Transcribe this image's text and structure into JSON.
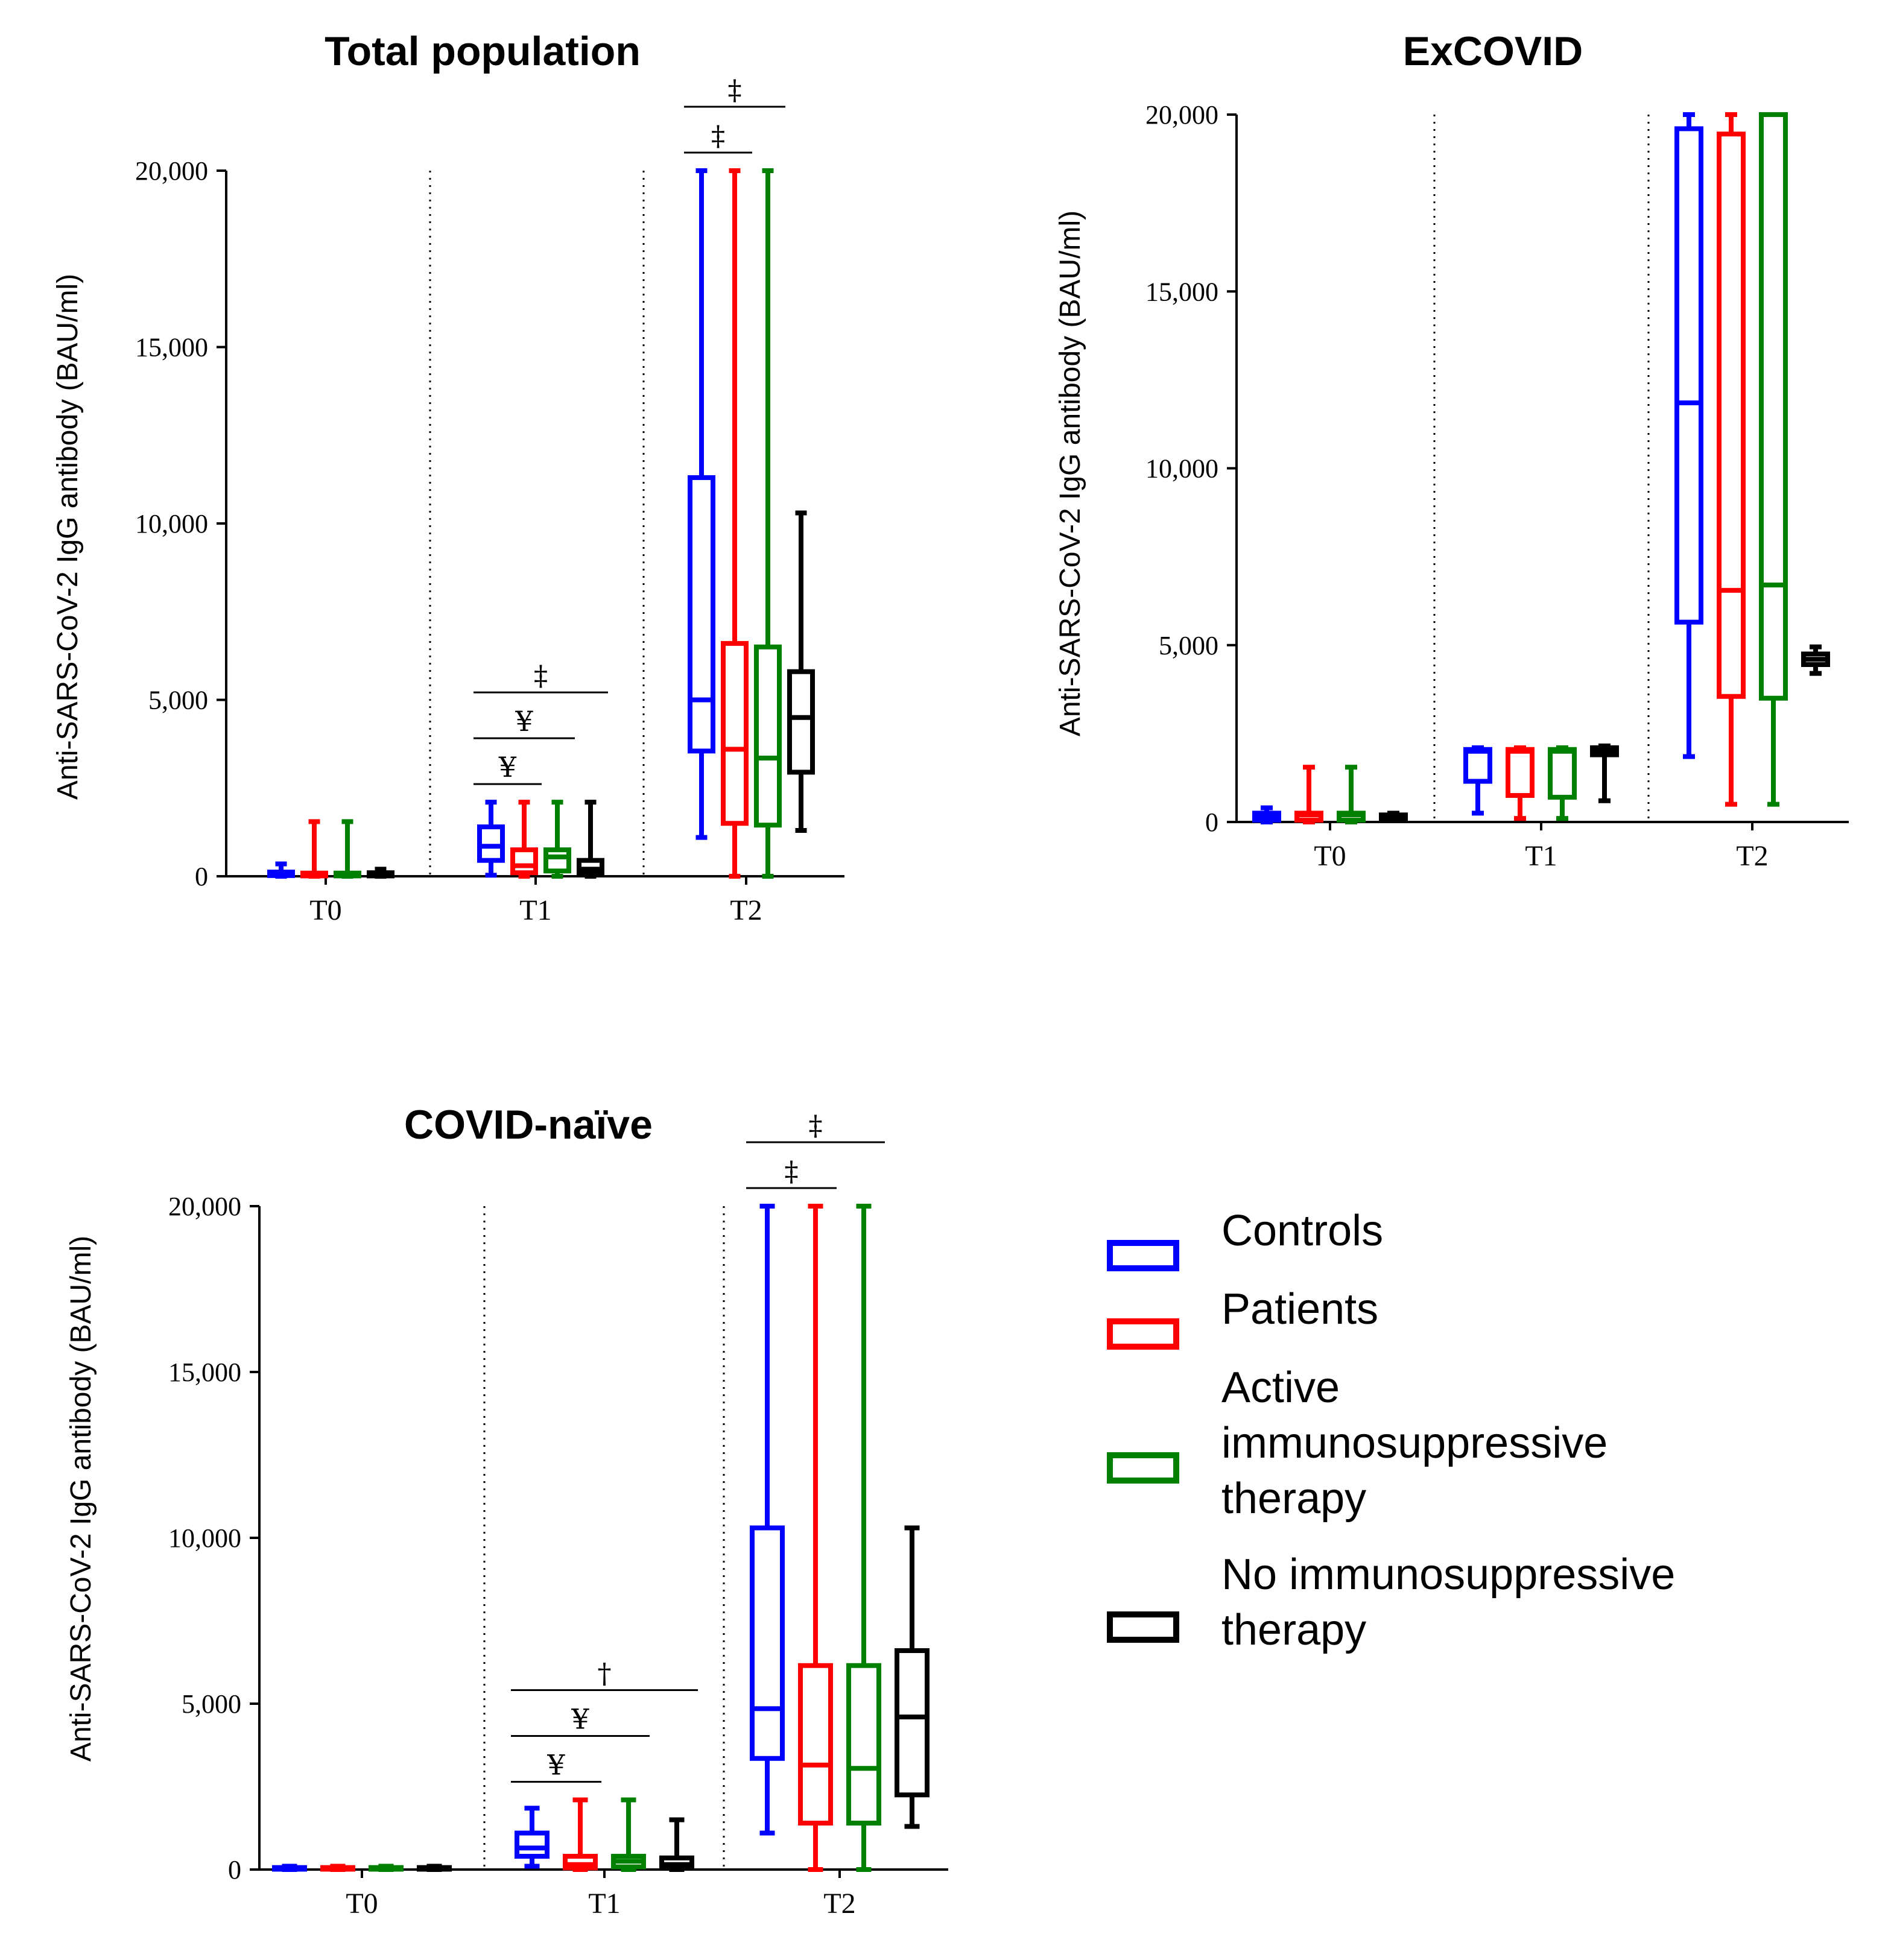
{
  "legend": {
    "items": [
      {
        "lines": [
          "Controls"
        ],
        "color": "#0000ff"
      },
      {
        "lines": [
          "Patients"
        ],
        "color": "#ff0000"
      },
      {
        "lines": [
          "Active",
          "immunosuppressive",
          "therapy"
        ],
        "color": "#008000"
      },
      {
        "lines": [
          "No immunosuppressive",
          "therapy"
        ],
        "color": "#000000"
      }
    ]
  },
  "chart_data": [
    {
      "type": "boxplot",
      "title": "Total population",
      "ylabel": "Anti-SARS-CoV-2 IgG antibody (BAU/ml)",
      "ylim": [
        0,
        20000
      ],
      "yticks": [
        0,
        5000,
        10000,
        15000,
        20000
      ],
      "ytick_labels": [
        "0",
        "5,000",
        "10,000",
        "15,000",
        "20,000"
      ],
      "categories": [
        "T0",
        "T1",
        "T2"
      ],
      "series": [
        {
          "name": "Controls",
          "color": "#0000ff",
          "boxes": [
            {
              "min": 0,
              "q1": 20,
              "median": 60,
              "q3": 120,
              "max": 350
            },
            {
              "min": 30,
              "q1": 450,
              "median": 850,
              "q3": 1400,
              "max": 2100
            },
            {
              "min": 1100,
              "q1": 3550,
              "median": 5000,
              "q3": 11300,
              "max": 20000
            }
          ]
        },
        {
          "name": "Patients",
          "color": "#ff0000",
          "boxes": [
            {
              "min": 0,
              "q1": 10,
              "median": 40,
              "q3": 90,
              "max": 1550
            },
            {
              "min": 0,
              "q1": 100,
              "median": 300,
              "q3": 750,
              "max": 2100
            },
            {
              "min": 0,
              "q1": 1500,
              "median": 3600,
              "q3": 6600,
              "max": 20000
            }
          ]
        },
        {
          "name": "Active immunosuppressive therapy",
          "color": "#008000",
          "boxes": [
            {
              "min": 0,
              "q1": 10,
              "median": 40,
              "q3": 90,
              "max": 1550
            },
            {
              "min": 0,
              "q1": 150,
              "median": 550,
              "q3": 750,
              "max": 2100
            },
            {
              "min": 0,
              "q1": 1450,
              "median": 3350,
              "q3": 6500,
              "max": 20000
            }
          ]
        },
        {
          "name": "No immunosuppressive therapy",
          "color": "#000000",
          "boxes": [
            {
              "min": 0,
              "q1": 10,
              "median": 50,
              "q3": 100,
              "max": 200
            },
            {
              "min": 0,
              "q1": 80,
              "median": 200,
              "q3": 450,
              "max": 2100
            },
            {
              "min": 1300,
              "q1": 2950,
              "median": 4500,
              "q3": 5800,
              "max": 10300
            }
          ]
        }
      ],
      "annotations": [
        {
          "symbol": "‡",
          "group": "T1",
          "from": 0,
          "to": 3,
          "level": 3
        },
        {
          "symbol": "¥",
          "group": "T1",
          "from": 0,
          "to": 2,
          "level": 2
        },
        {
          "symbol": "¥",
          "group": "T1",
          "from": 0,
          "to": 1,
          "level": 1
        },
        {
          "symbol": "‡",
          "group": "T2",
          "from": 0,
          "to": 2,
          "level": 2
        },
        {
          "symbol": "‡",
          "group": "T2",
          "from": 0,
          "to": 1,
          "level": 1
        }
      ]
    },
    {
      "type": "boxplot",
      "title": "ExCOVID",
      "ylabel": "Anti-SARS-CoV-2 IgG antibody (BAU/ml)",
      "ylim": [
        0,
        20000
      ],
      "yticks": [
        0,
        5000,
        10000,
        15000,
        20000
      ],
      "ytick_labels": [
        "0",
        "5,000",
        "10,000",
        "15,000",
        "20,000"
      ],
      "categories": [
        "T0",
        "T1",
        "T2"
      ],
      "series": [
        {
          "name": "Controls",
          "color": "#0000ff",
          "boxes": [
            {
              "min": 0,
              "q1": 50,
              "median": 150,
              "q3": 250,
              "max": 400
            },
            {
              "min": 250,
              "q1": 1150,
              "median": 2000,
              "q3": 2050,
              "max": 2100
            },
            {
              "min": 1850,
              "q1": 5650,
              "median": 11850,
              "q3": 19600,
              "max": 20000
            }
          ]
        },
        {
          "name": "Patients",
          "color": "#ff0000",
          "boxes": [
            {
              "min": 0,
              "q1": 50,
              "median": 200,
              "q3": 250,
              "max": 1550
            },
            {
              "min": 100,
              "q1": 750,
              "median": 2000,
              "q3": 2050,
              "max": 2100
            },
            {
              "min": 500,
              "q1": 3550,
              "median": 6550,
              "q3": 19450,
              "max": 20000
            }
          ]
        },
        {
          "name": "Active immunosuppressive therapy",
          "color": "#008000",
          "boxes": [
            {
              "min": 0,
              "q1": 50,
              "median": 200,
              "q3": 250,
              "max": 1550
            },
            {
              "min": 100,
              "q1": 700,
              "median": 2000,
              "q3": 2050,
              "max": 2100
            },
            {
              "min": 500,
              "q1": 3500,
              "median": 6700,
              "q3": 20000,
              "max": 20000
            }
          ]
        },
        {
          "name": "No immunosuppressive therapy",
          "color": "#000000",
          "boxes": [
            {
              "min": 50,
              "q1": 80,
              "median": 150,
              "q3": 200,
              "max": 250
            },
            {
              "min": 600,
              "q1": 1900,
              "median": 2000,
              "q3": 2100,
              "max": 2150
            },
            {
              "min": 4200,
              "q1": 4450,
              "median": 4600,
              "q3": 4750,
              "max": 4950
            }
          ]
        }
      ],
      "annotations": []
    },
    {
      "type": "boxplot",
      "title": "COVID-naïve",
      "ylabel": "Anti-SARS-CoV-2 IgG antibody (BAU/ml)",
      "ylim": [
        0,
        20000
      ],
      "yticks": [
        0,
        5000,
        10000,
        15000,
        20000
      ],
      "ytick_labels": [
        "0",
        "5,000",
        "10,000",
        "15,000",
        "20,000"
      ],
      "categories": [
        "T0",
        "T1",
        "T2"
      ],
      "series": [
        {
          "name": "Controls",
          "color": "#0000ff",
          "boxes": [
            {
              "min": 0,
              "q1": 10,
              "median": 30,
              "q3": 60,
              "max": 100
            },
            {
              "min": 100,
              "q1": 400,
              "median": 650,
              "q3": 1100,
              "max": 1850
            },
            {
              "min": 1100,
              "q1": 3350,
              "median": 4850,
              "q3": 10300,
              "max": 20000
            }
          ]
        },
        {
          "name": "Patients",
          "color": "#ff0000",
          "boxes": [
            {
              "min": 0,
              "q1": 10,
              "median": 30,
              "q3": 60,
              "max": 100
            },
            {
              "min": 0,
              "q1": 50,
              "median": 150,
              "q3": 400,
              "max": 2100
            },
            {
              "min": 0,
              "q1": 1400,
              "median": 3150,
              "q3": 6150,
              "max": 20000
            }
          ]
        },
        {
          "name": "Active immunosuppressive therapy",
          "color": "#008000",
          "boxes": [
            {
              "min": 0,
              "q1": 10,
              "median": 30,
              "q3": 60,
              "max": 100
            },
            {
              "min": 0,
              "q1": 80,
              "median": 250,
              "q3": 400,
              "max": 2100
            },
            {
              "min": 0,
              "q1": 1400,
              "median": 3050,
              "q3": 6150,
              "max": 20000
            }
          ]
        },
        {
          "name": "No immunosuppressive therapy",
          "color": "#000000",
          "boxes": [
            {
              "min": 0,
              "q1": 10,
              "median": 30,
              "q3": 60,
              "max": 100
            },
            {
              "min": 0,
              "q1": 50,
              "median": 150,
              "q3": 350,
              "max": 1500
            },
            {
              "min": 1300,
              "q1": 2250,
              "median": 4600,
              "q3": 6600,
              "max": 10300
            }
          ]
        }
      ],
      "annotations": [
        {
          "symbol": "†",
          "group": "T1",
          "from": 0,
          "to": 3,
          "level": 3
        },
        {
          "symbol": "¥",
          "group": "T1",
          "from": 0,
          "to": 2,
          "level": 2
        },
        {
          "symbol": "¥",
          "group": "T1",
          "from": 0,
          "to": 1,
          "level": 1
        },
        {
          "symbol": "‡",
          "group": "T2",
          "from": 0,
          "to": 2,
          "level": 2
        },
        {
          "symbol": "‡",
          "group": "T2",
          "from": 0,
          "to": 1,
          "level": 1
        }
      ]
    }
  ]
}
